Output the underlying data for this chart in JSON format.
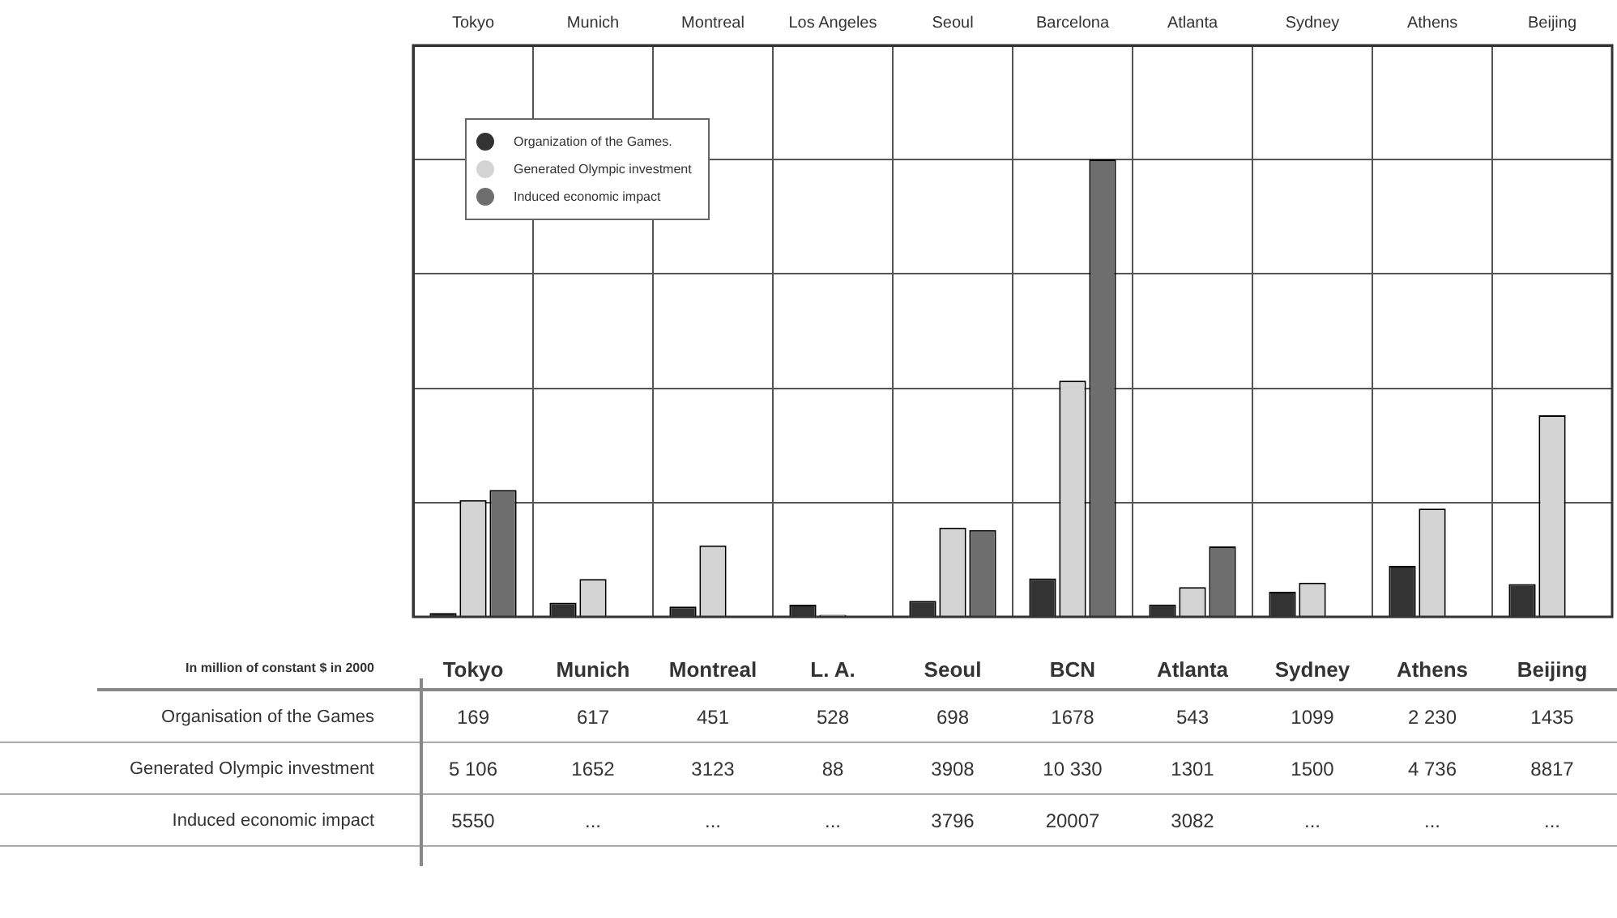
{
  "chart_data": {
    "type": "bar",
    "categories": [
      "Tokyo",
      "Munich",
      "Montreal",
      "Los Angeles",
      "Seoul",
      "Barcelona",
      "Atlanta",
      "Sydney",
      "Athens",
      "Beijing"
    ],
    "series": [
      {
        "name": "Organization of the Games.",
        "color": "#333333",
        "values": [
          169,
          617,
          451,
          528,
          698,
          1678,
          543,
          1099,
          2230,
          1435
        ],
        "value_labels": [
          "169",
          "617",
          "451",
          "528",
          "698",
          "1678",
          "543",
          "1099",
          "2 230",
          "1435"
        ]
      },
      {
        "name": "Generated Olympic investment",
        "color": "#d4d4d4",
        "values": [
          5106,
          1652,
          3123,
          88,
          3908,
          10330,
          1301,
          1500,
          4736,
          8817
        ],
        "value_labels": [
          "5 106",
          "1652",
          "3123",
          "88",
          "3908",
          "10 330",
          "1301",
          "1500",
          "4 736",
          "8817"
        ]
      },
      {
        "name": "Induced economic impact",
        "color": "#6e6e6e",
        "values": [
          5550,
          null,
          null,
          null,
          3796,
          20007,
          3082,
          null,
          null,
          null
        ],
        "value_labels": [
          "5550",
          "...",
          "...",
          "...",
          "3796",
          "20007",
          "3082",
          "...",
          "...",
          "..."
        ]
      }
    ],
    "ylim": [
      0,
      25000
    ],
    "tick_labels": "x",
    "grid": true,
    "legend": "top left",
    "annotations": [
      "In million of constant $ in 2000",
      "Organisation of the Games",
      "Generated Olympic investment",
      "Induced economic impact",
      "Tokyo",
      "Munich",
      "Montreal",
      "L. A.",
      "Seoul",
      "BCN",
      "Atlanta",
      "Sydney",
      "Athens",
      "Beijing"
    ]
  }
}
